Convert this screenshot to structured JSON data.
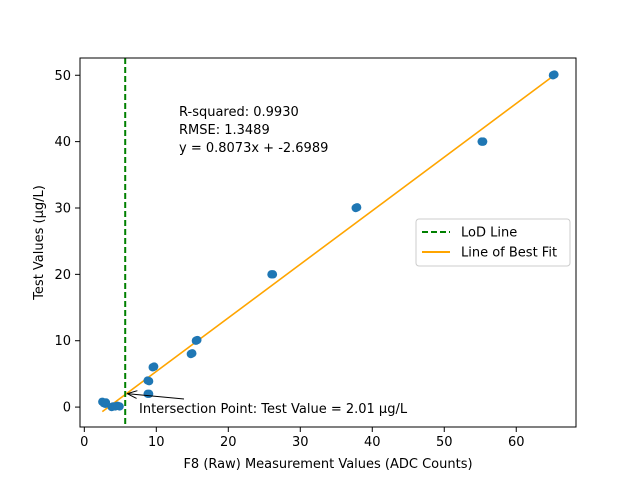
{
  "chart_data": {
    "type": "scatter",
    "title": "",
    "xlabel": "F8 (Raw) Measurement Values (ADC Counts)",
    "ylabel": "Test Values (µg/L)",
    "xlim": [
      -0.6,
      68.3
    ],
    "ylim": [
      -3.0,
      52.6
    ],
    "xticks": [
      0,
      10,
      20,
      30,
      40,
      50,
      60
    ],
    "yticks": [
      0,
      10,
      20,
      30,
      40,
      50
    ],
    "grid": false,
    "legend_position": "center-right",
    "series": [
      {
        "name": "",
        "kind": "scatter",
        "color": "#1f77b4",
        "points": [
          [
            2.5,
            0.8
          ],
          [
            2.7,
            0.6
          ],
          [
            2.9,
            0.5
          ],
          [
            3.0,
            0.7
          ],
          [
            3.8,
            0.0
          ],
          [
            4.0,
            0.1
          ],
          [
            4.3,
            0.1
          ],
          [
            4.6,
            0.2
          ],
          [
            4.9,
            0.1
          ],
          [
            8.8,
            2.0
          ],
          [
            9.0,
            2.0
          ],
          [
            8.8,
            4.0
          ],
          [
            9.0,
            3.9
          ],
          [
            9.5,
            6.0
          ],
          [
            9.7,
            6.1
          ],
          [
            14.8,
            8.0
          ],
          [
            15.0,
            8.1
          ],
          [
            15.5,
            10.0
          ],
          [
            15.7,
            10.1
          ],
          [
            26.0,
            20.0
          ],
          [
            26.2,
            20.0
          ],
          [
            37.7,
            30.0
          ],
          [
            37.9,
            30.1
          ],
          [
            55.2,
            40.0
          ],
          [
            55.4,
            40.0
          ],
          [
            65.1,
            50.0
          ],
          [
            65.3,
            50.1
          ]
        ]
      },
      {
        "name": "Line of Best Fit",
        "kind": "line",
        "color": "#ffa500",
        "slope": 0.8073,
        "intercept": -2.6989,
        "x_range": [
          2.5,
          65.3
        ]
      },
      {
        "name": "LoD Line",
        "kind": "vline",
        "color": "#008000",
        "style": "dashed",
        "x": 5.68
      }
    ],
    "annotations": {
      "stats": [
        "R-squared: 0.9930",
        "RMSE: 1.3489",
        "y = 0.8073x + -2.6989"
      ],
      "intersection_text": "Intersection Point: Test Value = 2.01 µg/L",
      "intersection_point": [
        5.68,
        2.01
      ],
      "intersection_text_pos": [
        7.0,
        -0.5
      ]
    },
    "legend": [
      "LoD Line",
      "Line of Best Fit"
    ]
  }
}
